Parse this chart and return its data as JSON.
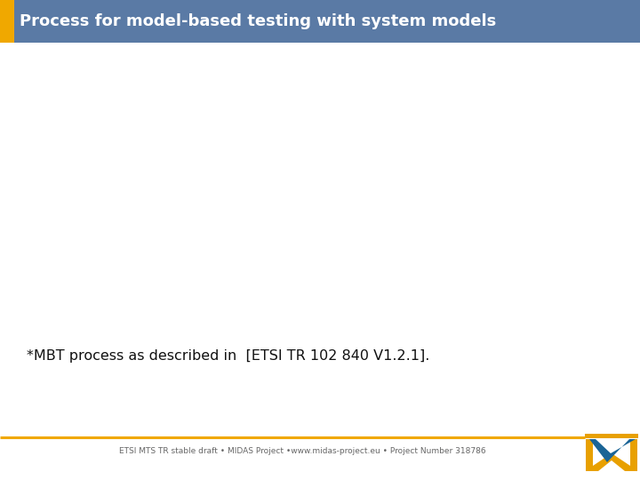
{
  "title": "Process for model-based testing with system models",
  "title_bg_color": "#5a7aa5",
  "title_left_bar_color": "#f0a800",
  "title_text_color": "#ffffff",
  "body_bg_color": "#ffffff",
  "footnote_text": "*MBT process as described in  [ETSI TR 102 840 V1.2.1].",
  "footnote_fontsize": 11.5,
  "footer_text": "ETSI MTS TR stable draft • MIDAS Project •www.midas-project.eu • Project Number 318786",
  "footer_text_color": "#666666",
  "footer_line_color": "#f0a800",
  "footer_fontsize": 6.5,
  "checkmark_color_blue": "#1a6496",
  "checkmark_color_orange": "#e8a000"
}
